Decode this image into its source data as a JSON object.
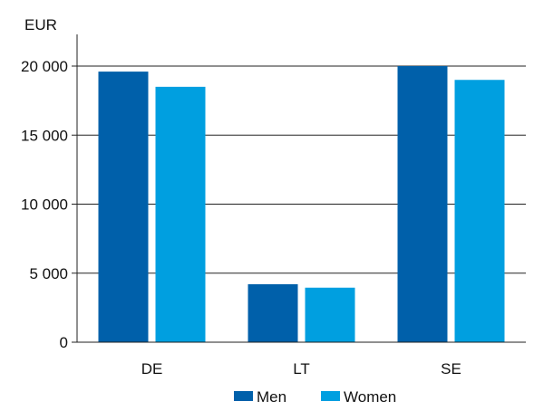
{
  "chart_data": {
    "type": "bar",
    "title": "",
    "xlabel": "",
    "ylabel": "",
    "unit_label": "EUR",
    "categories": [
      "DE",
      "LT",
      "SE"
    ],
    "series": [
      {
        "name": "Men",
        "values": [
          19600,
          4200,
          20000
        ],
        "color": "#0060aa"
      },
      {
        "name": "Women",
        "values": [
          18500,
          3950,
          19000
        ],
        "color": "#009fe0"
      }
    ],
    "ylim": [
      0,
      20000
    ],
    "yticks": [
      0,
      5000,
      10000,
      15000,
      20000
    ],
    "ytick_labels": [
      "0",
      "5 000",
      "10 000",
      "15 000",
      "20 000"
    ],
    "grid": true,
    "legend_position": "bottom"
  }
}
